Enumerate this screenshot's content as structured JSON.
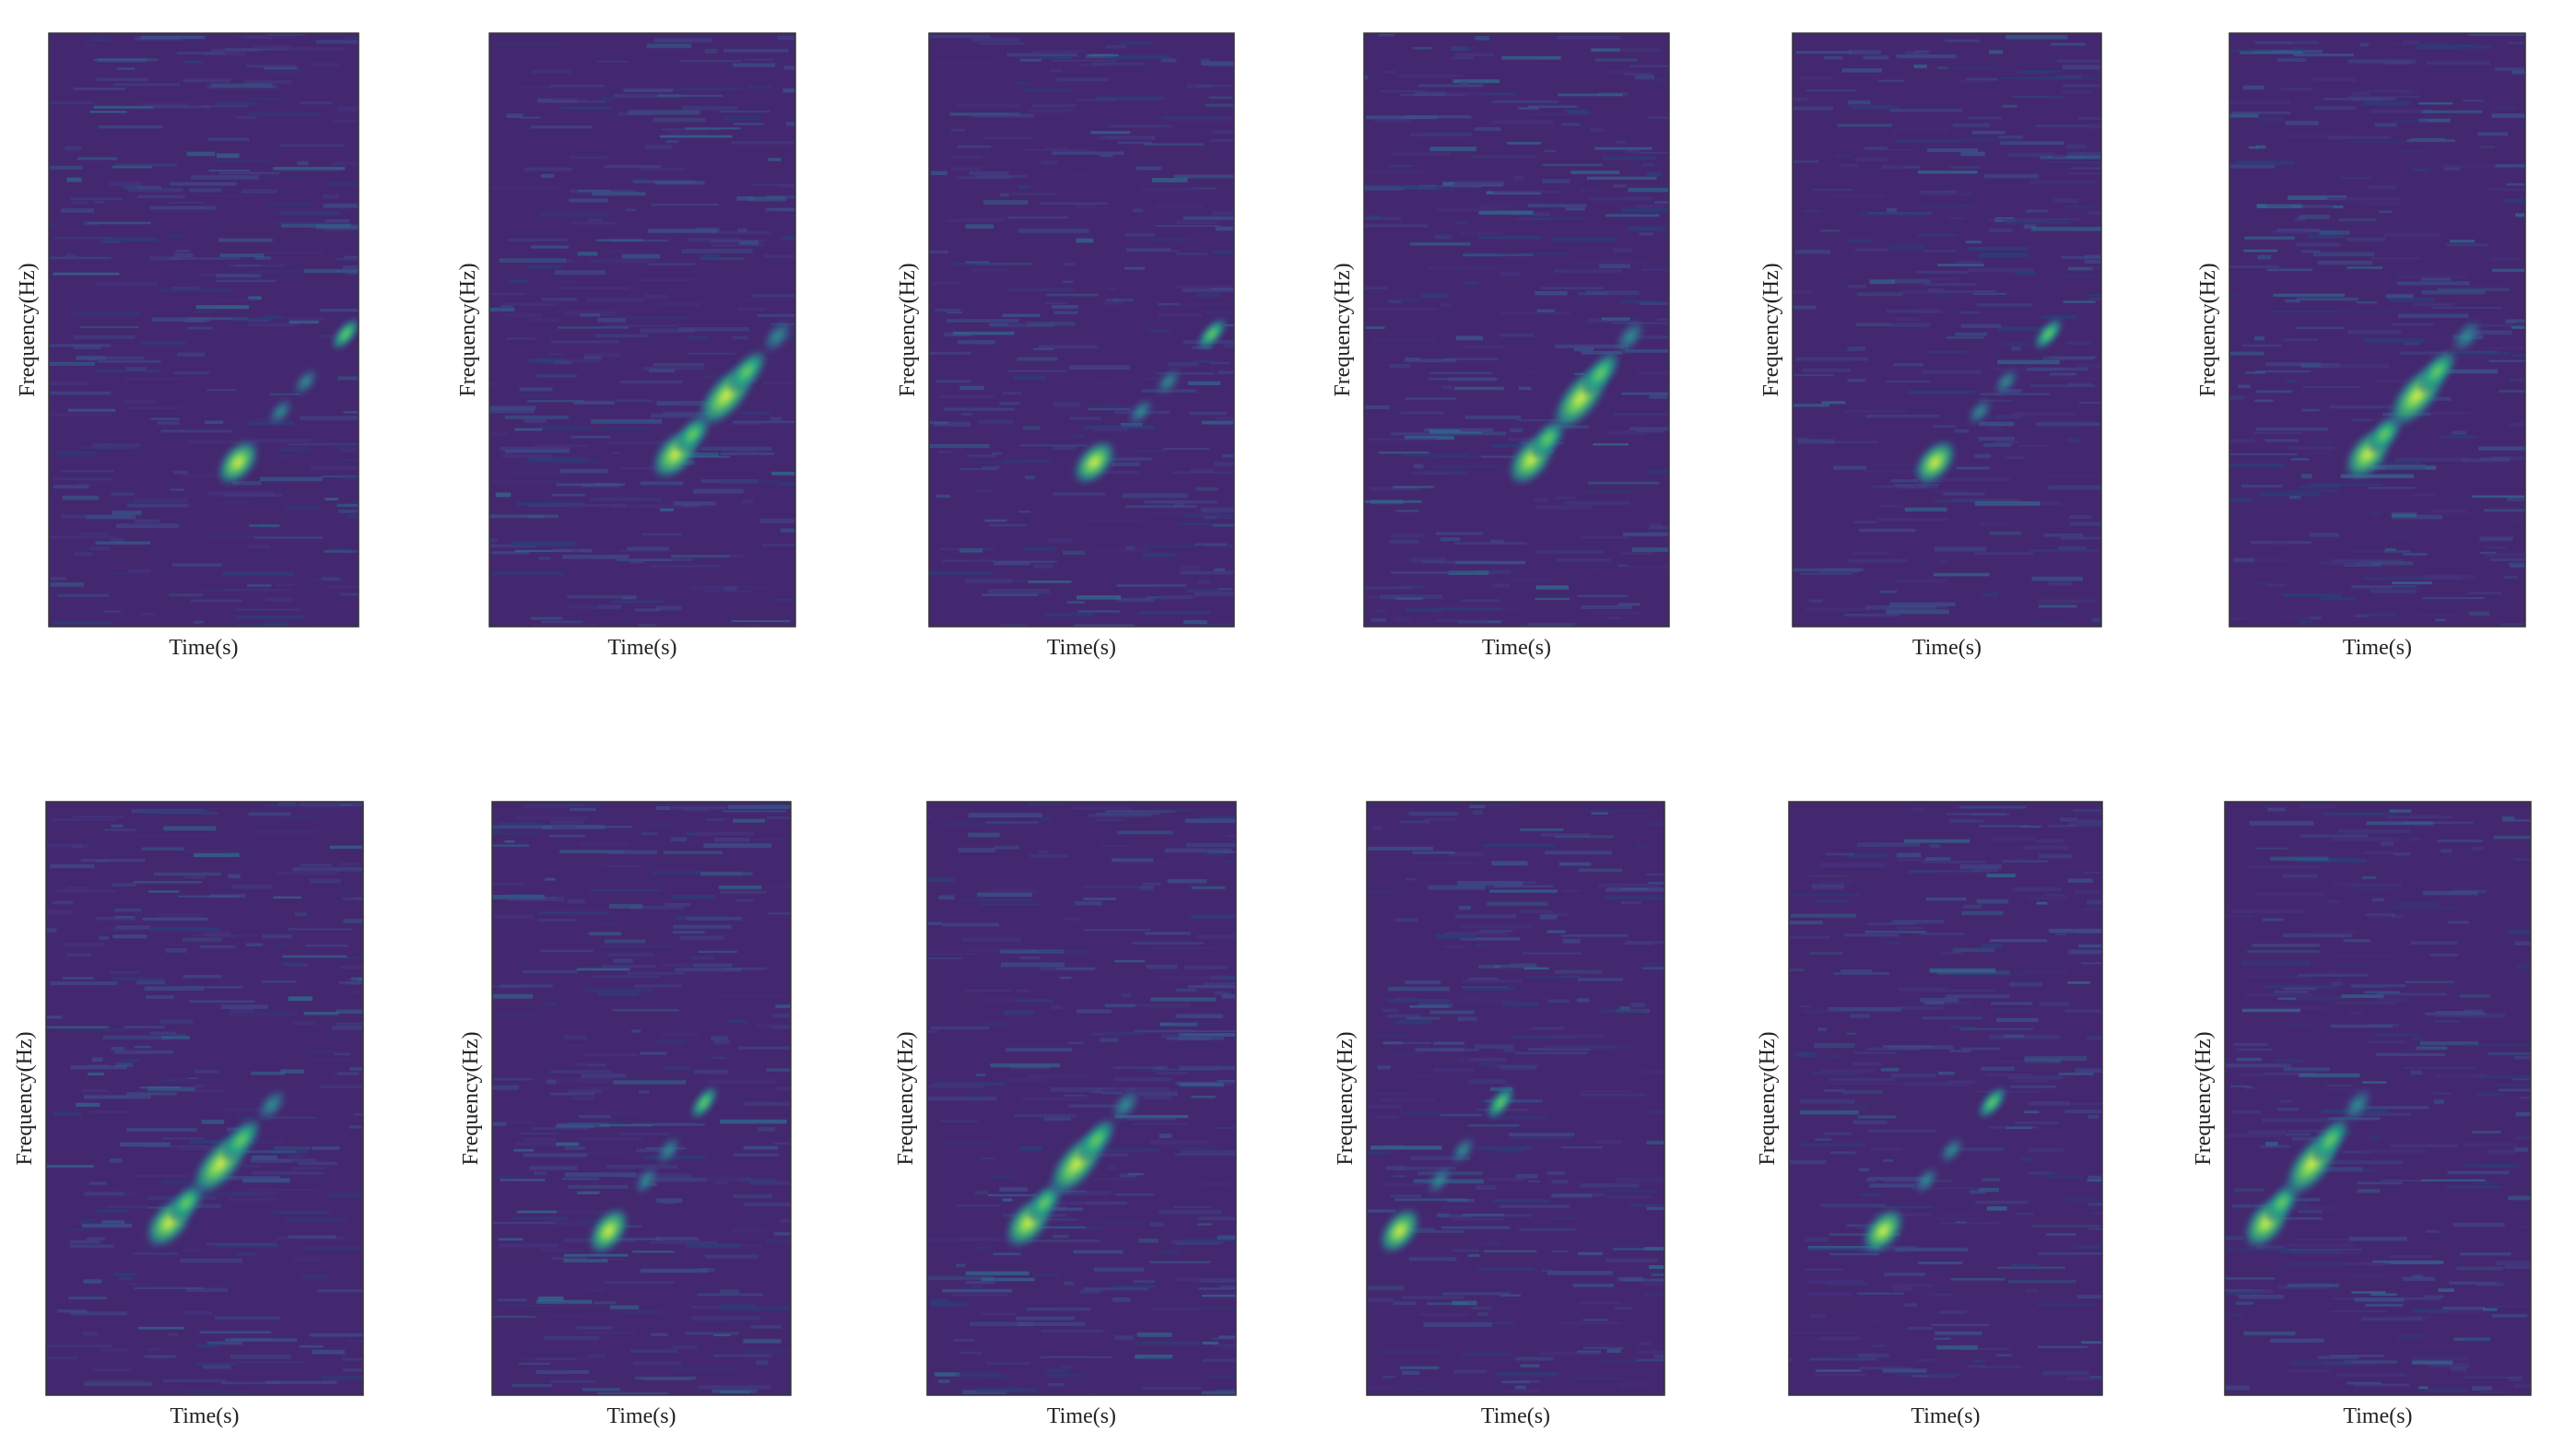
{
  "panels": [
    {
      "xlabel": "Time(s)",
      "ylabel": "Frequency(Hz)"
    },
    {
      "xlabel": "Time(s)",
      "ylabel": "Frequency(Hz)"
    },
    {
      "xlabel": "Time(s)",
      "ylabel": "Frequency(Hz)"
    },
    {
      "xlabel": "Time(s)",
      "ylabel": "Frequency(Hz)"
    },
    {
      "xlabel": "Time(s)",
      "ylabel": "Frequency(Hz)"
    },
    {
      "xlabel": "Time(s)",
      "ylabel": "Frequency(Hz)"
    },
    {
      "xlabel": "Time(s)",
      "ylabel": "Frequency(Hz)"
    },
    {
      "xlabel": "Time(s)",
      "ylabel": "Frequency(Hz)"
    },
    {
      "xlabel": "Time(s)",
      "ylabel": "Frequency(Hz)"
    },
    {
      "xlabel": "Time(s)",
      "ylabel": "Frequency(Hz)"
    },
    {
      "xlabel": "Time(s)",
      "ylabel": "Frequency(Hz)"
    },
    {
      "xlabel": "Time(s)",
      "ylabel": "Frequency(Hz)"
    }
  ]
}
